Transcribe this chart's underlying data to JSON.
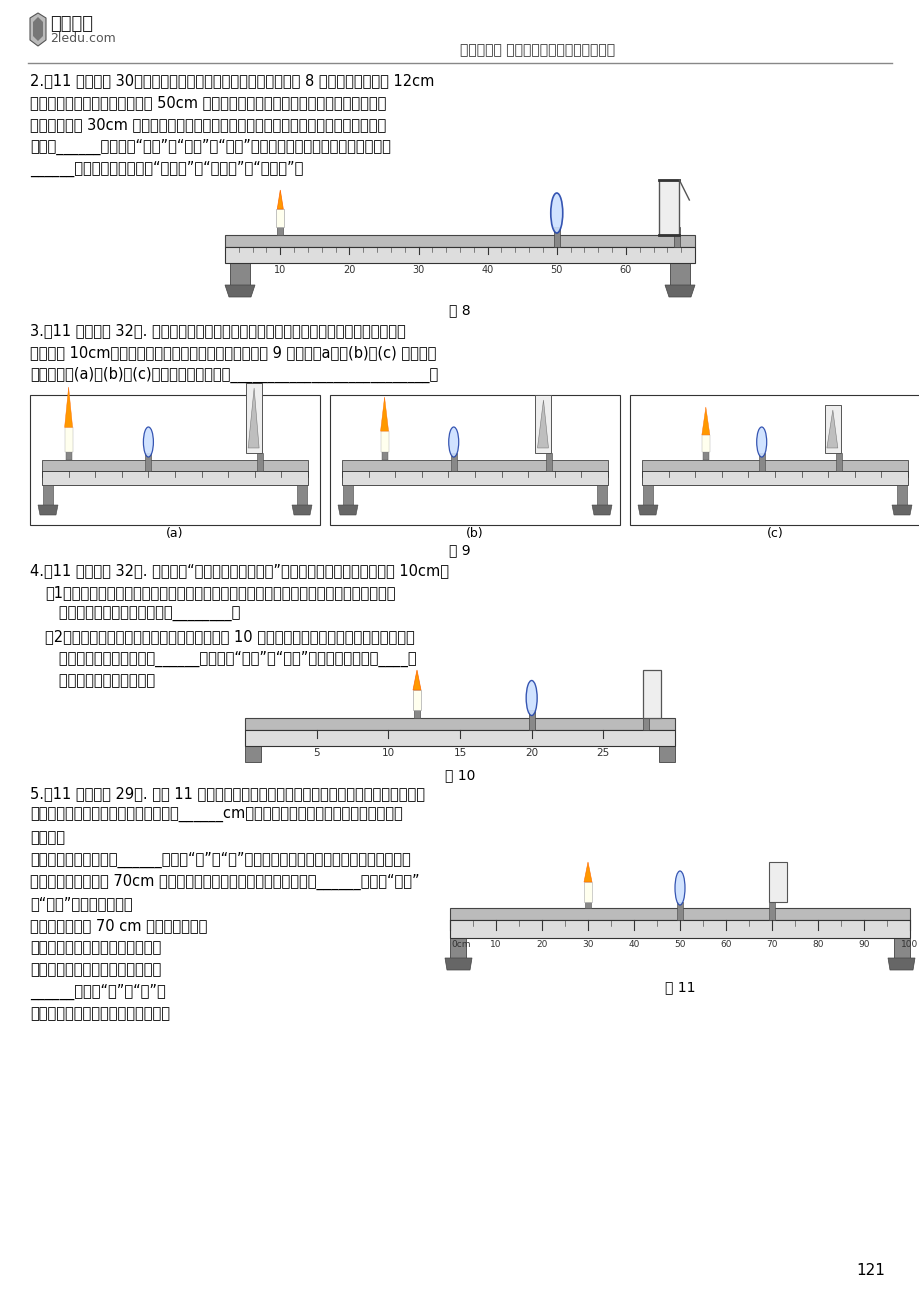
{
  "page_num": "121",
  "header_title": "第十三部分 透镜、凸透镜成像规律及应用",
  "background": "#ffffff",
  "text_color": "#000000",
  "fig8_label": "图 8",
  "fig9_label": "图 9",
  "fig10_label": "图 10",
  "fig11_label": "图 11",
  "line_color": "#888888",
  "bench_color": "#aaaaaa",
  "ruler_color": "#dddddd",
  "leg_color": "#888888",
  "foot_color": "#666666",
  "lens_color": "#ccddff",
  "lens_edge": "#2244aa",
  "screen_color": "#eeeeee",
  "candle_color": "#ffffcc",
  "flame_color": "#ffaa00"
}
